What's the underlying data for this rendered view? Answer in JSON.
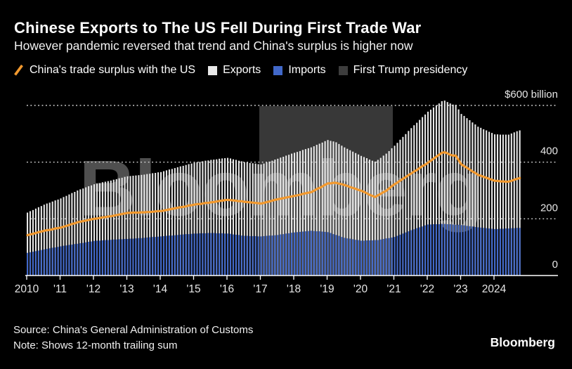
{
  "header": {
    "title": "Chinese Exports to The US Fell During First Trade War",
    "subtitle": "However pandemic reversed that trend and China's surplus is higher now"
  },
  "legend": [
    {
      "label": "China's trade surplus with the US",
      "swatch": "line",
      "color": "#F2992E"
    },
    {
      "label": "Exports",
      "swatch": "square",
      "color": "#E8E8E8"
    },
    {
      "label": "Imports",
      "swatch": "square",
      "color": "#4168C9"
    },
    {
      "label": "First Trump presidency",
      "swatch": "square",
      "color": "#3D3D3D"
    }
  ],
  "watermark": "Bloomberg",
  "chart_data": {
    "type": "bar",
    "subtype": "monthly bars with line overlay, 12-month trailing sums",
    "unit": "$ billion",
    "frequency": "monthly",
    "x_start": "2010-01",
    "x_end": "2024-10",
    "x_axis_labels": [
      "2010",
      "'11",
      "'12",
      "'13",
      "'14",
      "'15",
      "'16",
      "'17",
      "'18",
      "'19",
      "'20",
      "'21",
      "'22",
      "'23",
      "2024"
    ],
    "y_axis_labels": [
      "$600 billion",
      "400",
      "200",
      "0"
    ],
    "y_gridlines": [
      600,
      400,
      200
    ],
    "ylim": [
      0,
      650
    ],
    "grid": "dotted",
    "legend_position": "top",
    "annotations": [
      {
        "label": "First Trump presidency",
        "x_from": "2017-01",
        "x_to": "2021-01",
        "color": "#383838"
      }
    ],
    "series": [
      {
        "name": "Exports",
        "type": "bar",
        "color": "#E8E8E8",
        "values": [
          222,
          227,
          231,
          236,
          241,
          245,
          250,
          254,
          257,
          261,
          265,
          268,
          272,
          277,
          281,
          286,
          291,
          295,
          300,
          304,
          307,
          311,
          315,
          318,
          322,
          324,
          326,
          329,
          331,
          333,
          335,
          338,
          340,
          343,
          345,
          348,
          350,
          351,
          352,
          353,
          354,
          355,
          356,
          358,
          359,
          361,
          362,
          364,
          365,
          368,
          371,
          374,
          376,
          379,
          382,
          385,
          387,
          390,
          393,
          395,
          398,
          400,
          401,
          403,
          405,
          406,
          408,
          409,
          410,
          412,
          413,
          414,
          415,
          413,
          410,
          408,
          405,
          403,
          400,
          399,
          397,
          396,
          395,
          393,
          392,
          395,
          399,
          402,
          405,
          409,
          412,
          416,
          419,
          423,
          426,
          430,
          433,
          436,
          439,
          443,
          446,
          449,
          452,
          456,
          461,
          465,
          469,
          474,
          478,
          475,
          473,
          470,
          464,
          458,
          452,
          447,
          442,
          437,
          432,
          427,
          422,
          418,
          414,
          409,
          405,
          402,
          408,
          415,
          423,
          430,
          439,
          449,
          458,
          468,
          479,
          489,
          499,
          510,
          520,
          530,
          539,
          549,
          559,
          568,
          578,
          585,
          593,
          600,
          607,
          615,
          617,
          612,
          607,
          603,
          602,
          586,
          570,
          563,
          555,
          548,
          540,
          533,
          525,
          521,
          516,
          512,
          507,
          503,
          498,
          498,
          497,
          497,
          497,
          497,
          501,
          505,
          509,
          512
        ]
      },
      {
        "name": "Imports",
        "type": "bar",
        "color": "#4168C9",
        "values": [
          80,
          82,
          84,
          86,
          88,
          90,
          92,
          94,
          96,
          98,
          99,
          101,
          103,
          105,
          106,
          108,
          109,
          111,
          112,
          114,
          115,
          117,
          119,
          120,
          122,
          123,
          123,
          124,
          125,
          125,
          126,
          127,
          127,
          128,
          128,
          129,
          129,
          130,
          130,
          131,
          132,
          132,
          133,
          134,
          135,
          136,
          136,
          137,
          138,
          139,
          140,
          141,
          141,
          142,
          143,
          144,
          145,
          146,
          146,
          147,
          148,
          148,
          149,
          149,
          149,
          150,
          150,
          150,
          149,
          149,
          149,
          148,
          148,
          147,
          145,
          144,
          143,
          141,
          140,
          140,
          139,
          139,
          139,
          138,
          138,
          139,
          140,
          141,
          141,
          142,
          143,
          145,
          146,
          148,
          149,
          151,
          152,
          153,
          154,
          155,
          156,
          157,
          158,
          157,
          156,
          156,
          155,
          154,
          153,
          150,
          146,
          143,
          140,
          136,
          133,
          131,
          130,
          128,
          126,
          125,
          123,
          123,
          124,
          124,
          124,
          125,
          125,
          127,
          129,
          131,
          132,
          134,
          136,
          140,
          144,
          148,
          152,
          156,
          160,
          163,
          167,
          170,
          173,
          177,
          180,
          180,
          181,
          181,
          181,
          182,
          182,
          181,
          181,
          180,
          179,
          179,
          178,
          177,
          175,
          174,
          173,
          171,
          170,
          169,
          168,
          167,
          166,
          165,
          164,
          164,
          165,
          165,
          166,
          166,
          167,
          167,
          168,
          168
        ]
      },
      {
        "name": "China's trade surplus with the US",
        "type": "line",
        "color": "#F2992E",
        "values": [
          142,
          145,
          147,
          150,
          153,
          155,
          158,
          160,
          161,
          163,
          166,
          167,
          169,
          172,
          175,
          178,
          182,
          184,
          188,
          190,
          192,
          194,
          196,
          198,
          200,
          201,
          203,
          205,
          206,
          208,
          209,
          211,
          213,
          215,
          217,
          219,
          221,
          221,
          222,
          222,
          222,
          223,
          223,
          224,
          224,
          225,
          226,
          227,
          227,
          229,
          231,
          233,
          235,
          237,
          239,
          241,
          242,
          244,
          247,
          248,
          250,
          252,
          252,
          254,
          256,
          256,
          258,
          259,
          261,
          263,
          264,
          266,
          267,
          266,
          265,
          264,
          262,
          262,
          260,
          259,
          258,
          257,
          256,
          255,
          254,
          256,
          259,
          261,
          264,
          267,
          269,
          271,
          273,
          275,
          277,
          279,
          281,
          283,
          285,
          288,
          290,
          292,
          294,
          299,
          305,
          309,
          314,
          320,
          325,
          325,
          327,
          327,
          324,
          322,
          319,
          316,
          312,
          309,
          306,
          302,
          299,
          295,
          290,
          285,
          281,
          277,
          283,
          288,
          294,
          299,
          307,
          315,
          322,
          328,
          335,
          341,
          347,
          354,
          360,
          367,
          372,
          379,
          386,
          391,
          398,
          405,
          412,
          419,
          426,
          433,
          435,
          431,
          426,
          423,
          423,
          407,
          392,
          386,
          380,
          374,
          367,
          362,
          355,
          352,
          348,
          345,
          341,
          338,
          334,
          334,
          332,
          332,
          331,
          331,
          334,
          338,
          341,
          344
        ]
      }
    ]
  },
  "footer": {
    "source": "Source: China's General Administration of Customs",
    "note": "Note: Shows 12-month trailing sum",
    "logo": "Bloomberg"
  }
}
